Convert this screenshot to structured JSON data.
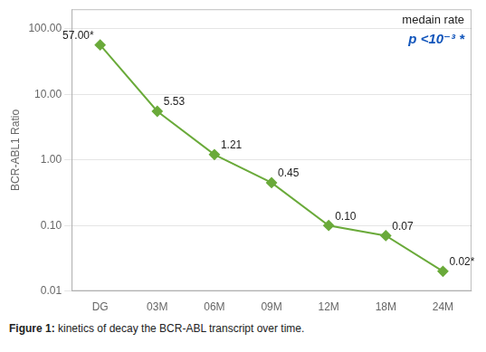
{
  "chart_data": {
    "type": "line",
    "categories": [
      "DG",
      "03M",
      "06M",
      "09M",
      "12M",
      "18M",
      "24M"
    ],
    "values": [
      57.0,
      5.53,
      1.21,
      0.45,
      0.1,
      0.07,
      0.02
    ],
    "value_labels": [
      "57.00*",
      "5.53",
      "1.21",
      "0.45",
      "0.10",
      "0.07",
      "0.02*"
    ],
    "data_labels": true,
    "color": "#6aaa3a",
    "marker": "diamond",
    "y_label": "BCR-ABL1 Ratio",
    "log": "y",
    "ylim": [
      0.01,
      200
    ],
    "yticks": [
      0.01,
      {
        "value": 0.1,
        "label": "0.10"
      },
      {
        "value": 1,
        "label": "1.00"
      },
      {
        "value": 10,
        "label": "10.00"
      },
      {
        "value": 100,
        "label": "100.00"
      }
    ],
    "grid": "y",
    "annotations": [
      {
        "text": "medain rate"
      },
      {
        "text": "p <10⁻³ *",
        "color": "#1155bb"
      }
    ],
    "caption": [
      "Figure 1:",
      "kinetics of decay the BCR-ABL transcript over time."
    ]
  }
}
